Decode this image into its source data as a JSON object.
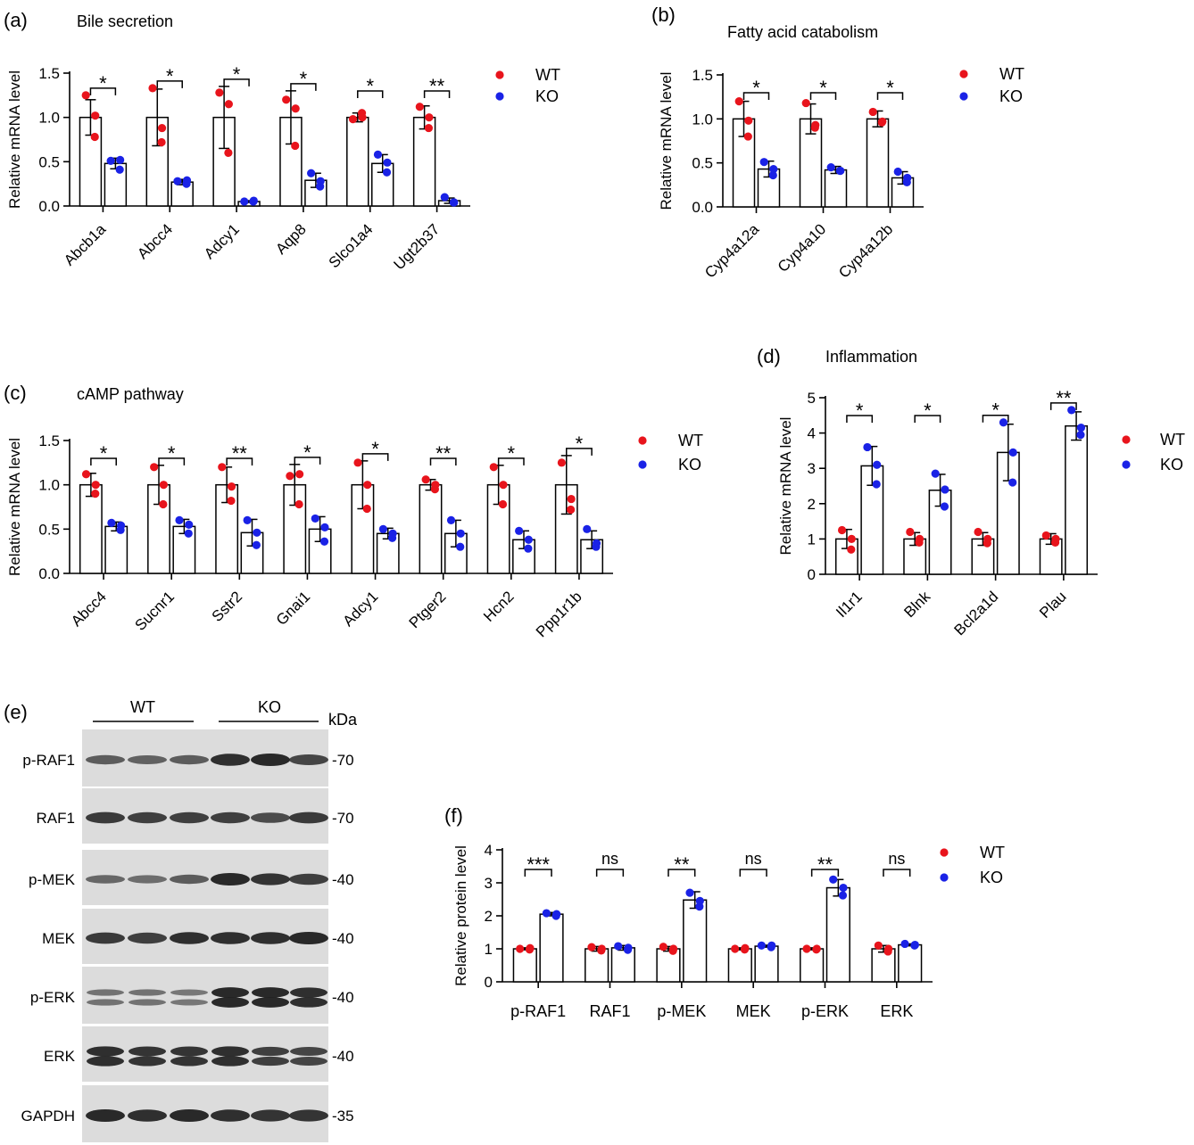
{
  "legend": {
    "wt": "WT",
    "ko": "KO"
  },
  "colors": {
    "wt": "#e8141c",
    "ko": "#1a22e6",
    "bar_fill": "#ffffff",
    "bar_stroke": "#000000",
    "blot_bg": "#dcdcdc",
    "band": "#1f1f1f"
  },
  "chart_data": [
    {
      "panel": "(a)",
      "title": "Bile secretion",
      "type": "bar",
      "ylabel": "Relative mRNA level",
      "ylim": [
        0,
        1.5
      ],
      "yticks": [
        "0.0",
        "0.5",
        "1.0",
        "1.5"
      ],
      "categories": [
        "Abcb1a",
        "Abcc4",
        "Adcy1",
        "Aqp8",
        "Slco1a4",
        "Ugt2b37"
      ],
      "series": [
        {
          "name": "WT",
          "values": [
            1.0,
            1.0,
            1.0,
            1.0,
            1.0,
            1.0
          ],
          "errors": [
            0.2,
            0.32,
            0.35,
            0.3,
            0.05,
            0.13
          ],
          "points": [
            [
              1.25,
              0.78,
              1.02
            ],
            [
              1.33,
              0.72,
              0.88
            ],
            [
              1.28,
              0.6,
              1.15
            ],
            [
              1.2,
              0.68,
              1.1
            ],
            [
              0.98,
              1.05,
              1.0
            ],
            [
              1.12,
              0.88,
              1.0
            ]
          ]
        },
        {
          "name": "KO",
          "values": [
            0.48,
            0.27,
            0.05,
            0.29,
            0.48,
            0.06
          ],
          "errors": [
            0.06,
            0.03,
            0.01,
            0.08,
            0.1,
            0.03
          ],
          "points": [
            [
              0.51,
              0.41,
              0.52
            ],
            [
              0.28,
              0.25,
              0.29
            ],
            [
              0.05,
              0.05,
              0.06
            ],
            [
              0.37,
              0.22,
              0.28
            ],
            [
              0.58,
              0.38,
              0.49
            ],
            [
              0.1,
              0.04,
              0.04
            ]
          ]
        }
      ],
      "significance": [
        "*",
        "*",
        "*",
        "*",
        "*",
        "**"
      ]
    },
    {
      "panel": "(b)",
      "title": "Fatty acid catabolism",
      "type": "bar",
      "ylabel": "Relative mRNA level",
      "ylim": [
        0,
        1.5
      ],
      "yticks": [
        "0.0",
        "0.5",
        "1.0",
        "1.5"
      ],
      "categories": [
        "Cyp4a12a",
        "Cyp4a10",
        "Cyp4a12b"
      ],
      "series": [
        {
          "name": "WT",
          "values": [
            1.0,
            1.0,
            1.0
          ],
          "errors": [
            0.2,
            0.17,
            0.09
          ],
          "points": [
            [
              1.2,
              0.8,
              0.98
            ],
            [
              1.18,
              0.9,
              0.93
            ],
            [
              1.08,
              0.96,
              0.97
            ]
          ]
        },
        {
          "name": "KO",
          "values": [
            0.43,
            0.42,
            0.33
          ],
          "errors": [
            0.09,
            0.04,
            0.07
          ],
          "points": [
            [
              0.51,
              0.36,
              0.43
            ],
            [
              0.45,
              0.41,
              0.41
            ],
            [
              0.4,
              0.28,
              0.33
            ]
          ]
        }
      ],
      "significance": [
        "*",
        "*",
        "*"
      ]
    },
    {
      "panel": "(c)",
      "title": "cAMP pathway",
      "type": "bar",
      "ylabel": "Relative mRNA level",
      "ylim": [
        0,
        1.5
      ],
      "yticks": [
        "0.0",
        "0.5",
        "1.0",
        "1.5"
      ],
      "categories": [
        "Abcc4",
        "Sucnr1",
        "Sstr2",
        "Gnai1",
        "Adcy1",
        "Ptger2",
        "Hcn2",
        "Ppp1r1b"
      ],
      "series": [
        {
          "name": "WT",
          "values": [
            1.0,
            1.0,
            1.0,
            1.0,
            1.0,
            1.0,
            1.0,
            1.0
          ],
          "errors": [
            0.13,
            0.22,
            0.2,
            0.23,
            0.27,
            0.06,
            0.22,
            0.33
          ],
          "points": [
            [
              1.12,
              0.9,
              1.0
            ],
            [
              1.2,
              0.78,
              1.0
            ],
            [
              1.2,
              0.82,
              0.98
            ],
            [
              1.1,
              0.78,
              1.12
            ],
            [
              1.25,
              0.73,
              1.0
            ],
            [
              1.06,
              0.95,
              1.0
            ],
            [
              1.2,
              0.78,
              1.0
            ],
            [
              1.25,
              0.72,
              0.84
            ]
          ]
        },
        {
          "name": "KO",
          "values": [
            0.53,
            0.53,
            0.46,
            0.5,
            0.45,
            0.45,
            0.38,
            0.38
          ],
          "errors": [
            0.05,
            0.08,
            0.15,
            0.14,
            0.06,
            0.15,
            0.1,
            0.1
          ],
          "points": [
            [
              0.57,
              0.49,
              0.54
            ],
            [
              0.6,
              0.45,
              0.55
            ],
            [
              0.6,
              0.32,
              0.46
            ],
            [
              0.62,
              0.36,
              0.52
            ],
            [
              0.5,
              0.4,
              0.45
            ],
            [
              0.6,
              0.3,
              0.45
            ],
            [
              0.48,
              0.28,
              0.38
            ],
            [
              0.5,
              0.3,
              0.34
            ]
          ]
        }
      ],
      "significance": [
        "*",
        "*",
        "**",
        "*",
        "*",
        "**",
        "*",
        "*"
      ]
    },
    {
      "panel": "(d)",
      "title": "Inflammation",
      "type": "bar",
      "ylabel": "Relative mRNA level",
      "ylim": [
        0,
        5
      ],
      "yticks": [
        "0",
        "1",
        "2",
        "3",
        "4",
        "5"
      ],
      "categories": [
        "Il1r1",
        "Blnk",
        "Bcl2a1d",
        "Plau"
      ],
      "series": [
        {
          "name": "WT",
          "values": [
            1.0,
            1.0,
            1.0,
            1.0
          ],
          "errors": [
            0.27,
            0.18,
            0.18,
            0.15
          ],
          "points": [
            [
              1.25,
              0.7,
              1.0
            ],
            [
              1.2,
              0.9,
              1.0
            ],
            [
              1.2,
              0.88,
              1.0
            ],
            [
              1.1,
              0.9,
              1.0
            ]
          ]
        },
        {
          "name": "KO",
          "values": [
            3.07,
            2.38,
            3.45,
            4.2
          ],
          "errors": [
            0.55,
            0.45,
            0.8,
            0.4
          ],
          "points": [
            [
              3.6,
              2.55,
              3.1
            ],
            [
              2.85,
              1.92,
              2.4
            ],
            [
              4.3,
              2.6,
              3.45
            ],
            [
              4.65,
              3.95,
              4.15
            ]
          ]
        }
      ],
      "significance": [
        "*",
        "*",
        "*",
        "**"
      ]
    },
    {
      "panel": "(f)",
      "type": "bar",
      "ylabel": "Relative protein level",
      "ylim": [
        0,
        4
      ],
      "yticks": [
        "0",
        "1",
        "2",
        "3",
        "4"
      ],
      "categories": [
        "p-RAF1",
        "RAF1",
        "p-MEK",
        "MEK",
        "p-ERK",
        "ERK"
      ],
      "series": [
        {
          "name": "WT",
          "values": [
            1.0,
            1.0,
            1.0,
            1.0,
            1.0,
            1.0
          ],
          "errors": [
            0.03,
            0.07,
            0.07,
            0.03,
            0.03,
            0.1
          ],
          "points": [
            [
              1.0,
              0.98,
              1.02
            ],
            [
              1.05,
              0.95,
              1.0
            ],
            [
              1.06,
              0.94,
              1.0
            ],
            [
              1.0,
              0.98,
              1.02
            ],
            [
              1.0,
              0.98,
              1.0
            ],
            [
              1.1,
              0.92,
              1.0
            ]
          ]
        },
        {
          "name": "KO",
          "values": [
            2.05,
            1.03,
            2.48,
            1.08,
            2.85,
            1.12
          ],
          "errors": [
            0.05,
            0.07,
            0.25,
            0.03,
            0.25,
            0.03
          ],
          "points": [
            [
              2.08,
              2.0,
              2.05
            ],
            [
              1.08,
              0.97,
              1.03
            ],
            [
              2.7,
              2.28,
              2.45
            ],
            [
              1.1,
              1.05,
              1.1
            ],
            [
              3.1,
              2.62,
              2.85
            ],
            [
              1.15,
              1.1,
              1.12
            ]
          ]
        }
      ],
      "significance": [
        "***",
        "ns",
        "**",
        "ns",
        "**",
        "ns"
      ]
    }
  ],
  "western_blot": {
    "panel": "(e)",
    "groups": [
      "WT",
      "KO"
    ],
    "unit_label": "kDa",
    "rows": [
      {
        "label": "p-RAF1",
        "marker": "-70",
        "intensity": [
          0.55,
          0.5,
          0.55,
          0.95,
          1.0,
          0.75
        ]
      },
      {
        "label": "RAF1",
        "marker": "-70",
        "intensity": [
          0.85,
          0.8,
          0.8,
          0.8,
          0.7,
          0.85
        ]
      },
      {
        "label": "p-MEK",
        "marker": "-40",
        "intensity": [
          0.45,
          0.4,
          0.55,
          1.0,
          0.9,
          0.8
        ]
      },
      {
        "label": "MEK",
        "marker": "-40",
        "intensity": [
          0.85,
          0.8,
          0.95,
          0.95,
          0.95,
          1.0
        ]
      },
      {
        "label": "p-ERK",
        "marker": "-40",
        "intensity": [
          0.35,
          0.35,
          0.3,
          1.0,
          1.0,
          0.95
        ]
      },
      {
        "label": "ERK",
        "marker": "-40",
        "intensity": [
          0.95,
          0.9,
          0.9,
          0.95,
          0.8,
          0.75
        ]
      },
      {
        "label": "GAPDH",
        "marker": "-35",
        "intensity": [
          1.0,
          0.95,
          1.0,
          0.95,
          0.9,
          0.9
        ]
      }
    ]
  }
}
